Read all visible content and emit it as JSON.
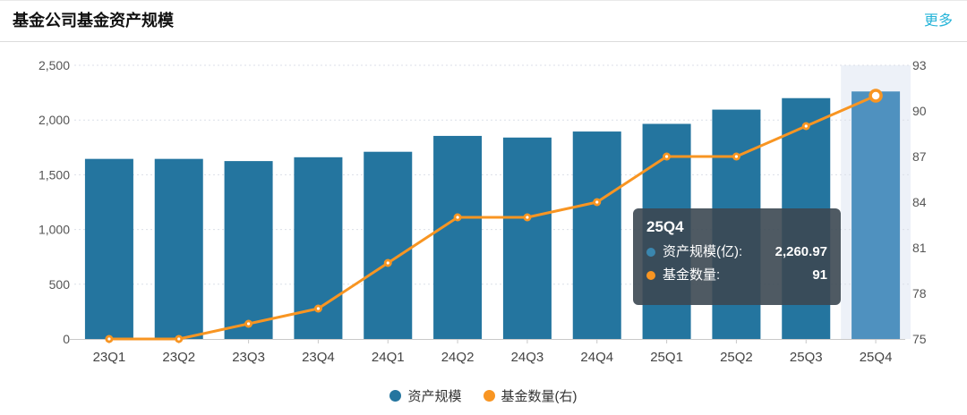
{
  "header": {
    "title": "基金公司基金资产规模",
    "more_label": "更多"
  },
  "legend": [
    {
      "label": "资产规模",
      "color": "#24759f"
    },
    {
      "label": "基金数量(右)",
      "color": "#f89522"
    }
  ],
  "tooltip": {
    "title": "25Q4",
    "rows": [
      {
        "label": "资产规模(亿):",
        "value": "2,260.97",
        "color": "#3a86ae"
      },
      {
        "label": "基金数量:",
        "value": "91",
        "color": "#f89522"
      }
    ]
  },
  "chart_data": {
    "type": "bar",
    "title": "基金公司基金资产规模",
    "categories": [
      "23Q1",
      "23Q2",
      "23Q3",
      "23Q4",
      "24Q1",
      "24Q2",
      "24Q3",
      "24Q4",
      "25Q1",
      "25Q2",
      "25Q3",
      "25Q4"
    ],
    "series": [
      {
        "name": "资产规模",
        "type": "bar",
        "axis": "left",
        "values": [
          1645,
          1645,
          1625,
          1660,
          1710,
          1855,
          1840,
          1895,
          1965,
          2095,
          2200,
          2260.97
        ]
      },
      {
        "name": "基金数量(右)",
        "type": "line",
        "axis": "right",
        "values": [
          75,
          75,
          76,
          77,
          80,
          83,
          83,
          84,
          87,
          87,
          89,
          91
        ]
      }
    ],
    "left_axis": {
      "range": [
        0,
        2500
      ],
      "ticks": [
        0,
        500,
        1000,
        1500,
        2000,
        2500
      ],
      "labels": [
        "0",
        "500",
        "1,000",
        "1,500",
        "2,000",
        "2,500"
      ]
    },
    "right_axis": {
      "range": [
        75,
        93
      ],
      "ticks": [
        75,
        78,
        81,
        84,
        87,
        90,
        93
      ],
      "labels": [
        "75",
        "78",
        "81",
        "84",
        "87",
        "90",
        "93"
      ]
    },
    "highlight_index": 11,
    "grid": "horizontal-dotted",
    "legend_position": "bottom"
  },
  "colors": {
    "bar": "#24759f",
    "bar_highlight": "#4f91bf",
    "highlight_band": "#edf1f8",
    "line": "#f89522",
    "gridline": "#dcdfe8",
    "axis_line": "#c9c9c9",
    "axis_label": "#555555",
    "x_label": "#444444",
    "more_link": "#26b4d8"
  }
}
